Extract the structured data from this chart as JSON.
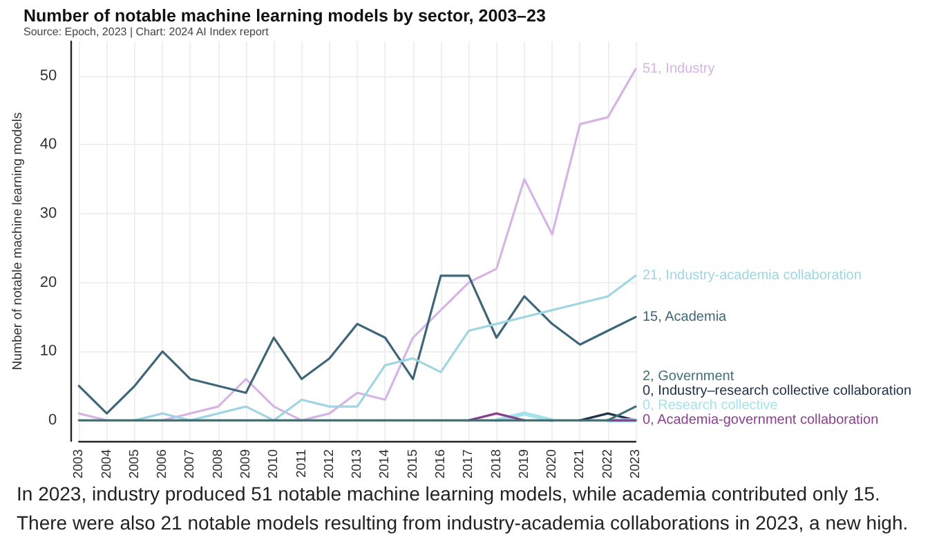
{
  "chart_data": {
    "type": "line",
    "title": "Number of notable machine learning models by sector, 2003–23",
    "subtitle": "Source: Epoch, 2023 | Chart: 2024 AI Index report",
    "ylabel": "Number of notable machine learning models",
    "annotations": [
      "In 2023, industry produced 51 notable machine learning models, while academia contributed only 15.",
      "There were also 21 notable models resulting from industry-academia collaborations in 2023, a new high."
    ],
    "categories": [
      "2003",
      "2004",
      "2005",
      "2006",
      "2007",
      "2008",
      "2009",
      "2010",
      "2011",
      "2012",
      "2013",
      "2014",
      "2015",
      "2016",
      "2017",
      "2018",
      "2019",
      "2020",
      "2021",
      "2022",
      "2023"
    ],
    "series": [
      {
        "name": "Industry",
        "color": "#d6b4e4",
        "values": [
          1,
          0,
          null,
          0,
          1,
          2,
          6,
          2,
          0,
          1,
          4,
          3,
          12,
          16,
          20,
          22,
          35,
          27,
          43,
          44,
          51
        ],
        "value_labels": [
          null,
          null,
          null,
          null,
          null,
          null,
          null,
          null,
          null,
          null,
          null,
          null,
          null,
          null,
          null,
          null,
          null,
          null,
          null,
          null,
          "51,"
        ]
      },
      {
        "name": "Academia",
        "color": "#3e6678",
        "values": [
          5,
          1,
          5,
          10,
          6,
          5,
          4,
          12,
          6,
          9,
          14,
          12,
          6,
          21,
          21,
          12,
          18,
          14,
          11,
          13,
          15
        ],
        "value_labels": [
          null,
          null,
          null,
          null,
          null,
          null,
          null,
          null,
          null,
          null,
          null,
          null,
          null,
          null,
          null,
          null,
          null,
          null,
          null,
          null,
          "15,"
        ]
      },
      {
        "name": "Industry-academia collaboration",
        "color": "#9fd6e2",
        "values": [
          null,
          null,
          0,
          1,
          0,
          1,
          2,
          0,
          3,
          2,
          2,
          8,
          9,
          7,
          13,
          14,
          15,
          16,
          17,
          18,
          21
        ],
        "value_labels": [
          null,
          null,
          null,
          null,
          null,
          null,
          null,
          null,
          null,
          null,
          null,
          null,
          null,
          null,
          null,
          null,
          null,
          null,
          null,
          null,
          "21,"
        ]
      },
      {
        "name": "Industry–research collective collaboration",
        "color": "#22304a",
        "values": [
          null,
          null,
          null,
          null,
          null,
          null,
          null,
          null,
          null,
          null,
          null,
          null,
          null,
          null,
          null,
          null,
          null,
          null,
          0,
          1,
          0
        ],
        "value_labels": [
          null,
          null,
          null,
          null,
          null,
          null,
          null,
          null,
          null,
          null,
          null,
          null,
          null,
          null,
          null,
          null,
          null,
          null,
          null,
          null,
          "0,"
        ]
      },
      {
        "name": "Research collective",
        "color": "#a6e2ea",
        "values": [
          null,
          null,
          null,
          null,
          null,
          null,
          null,
          null,
          null,
          null,
          null,
          null,
          null,
          null,
          null,
          0,
          1,
          0,
          null,
          0,
          0
        ],
        "value_labels": [
          null,
          null,
          null,
          null,
          null,
          null,
          null,
          null,
          null,
          null,
          null,
          null,
          null,
          null,
          null,
          null,
          null,
          null,
          null,
          null,
          "0,"
        ]
      },
      {
        "name": "Academia-government collaboration",
        "color": "#8a3f8e",
        "values": [
          null,
          null,
          null,
          null,
          null,
          null,
          null,
          null,
          null,
          null,
          null,
          null,
          null,
          null,
          0,
          1,
          0,
          null,
          null,
          0,
          0
        ],
        "value_labels": [
          null,
          null,
          null,
          null,
          null,
          null,
          null,
          null,
          null,
          null,
          null,
          null,
          null,
          null,
          null,
          null,
          null,
          null,
          null,
          null,
          "0,"
        ]
      },
      {
        "name": "Government",
        "color": "#3f6f72",
        "values": [
          0,
          0,
          0,
          0,
          0,
          0,
          0,
          0,
          0,
          0,
          0,
          0,
          0,
          0,
          0,
          0,
          0,
          0,
          0,
          0,
          2
        ],
        "value_labels": [
          null,
          null,
          null,
          null,
          null,
          null,
          null,
          null,
          null,
          null,
          null,
          null,
          null,
          null,
          null,
          null,
          null,
          null,
          null,
          null,
          "2,"
        ]
      }
    ],
    "ylim": [
      -3,
      55
    ],
    "yticks": [
      0,
      10,
      20,
      30,
      40,
      50
    ],
    "grid": true,
    "marker": "none",
    "line_style": "solid"
  }
}
